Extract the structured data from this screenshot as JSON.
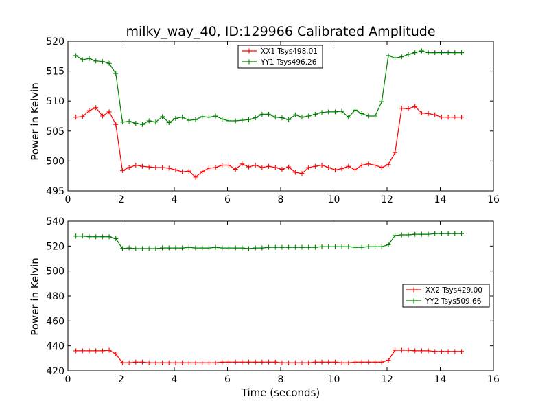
{
  "chart_data": [
    {
      "type": "line",
      "title": "milky_way_40, ID:129966 Calibrated Amplitude",
      "xlabel": "",
      "ylabel": "Power in Kelvin",
      "xlim": [
        0,
        16
      ],
      "ylim": [
        495,
        520
      ],
      "xticks": [
        "0",
        "2",
        "4",
        "6",
        "8",
        "10",
        "12",
        "14",
        "16"
      ],
      "yticks": [
        "495",
        "500",
        "505",
        "510",
        "515",
        "520"
      ],
      "grid": false,
      "legend_position": "top-center",
      "x": [
        0.3,
        0.55,
        0.8,
        1.05,
        1.3,
        1.55,
        1.8,
        2.05,
        2.3,
        2.55,
        2.8,
        3.05,
        3.3,
        3.55,
        3.8,
        4.05,
        4.3,
        4.55,
        4.8,
        5.05,
        5.3,
        5.55,
        5.8,
        6.05,
        6.3,
        6.55,
        6.8,
        7.05,
        7.3,
        7.55,
        7.8,
        8.05,
        8.3,
        8.55,
        8.8,
        9.05,
        9.3,
        9.55,
        9.8,
        10.05,
        10.3,
        10.55,
        10.8,
        11.05,
        11.3,
        11.55,
        11.8,
        12.05,
        12.3,
        12.55,
        12.8,
        13.05,
        13.3,
        13.55,
        13.8,
        14.05,
        14.3,
        14.55,
        14.8
      ],
      "series": [
        {
          "name": "XX1 Tsys498.01",
          "color": "#ff0000",
          "values": [
            507.3,
            507.4,
            508.4,
            508.9,
            507.5,
            508.2,
            506.1,
            498.4,
            498.9,
            499.3,
            499.1,
            499.0,
            498.9,
            498.9,
            498.8,
            498.5,
            498.2,
            498.3,
            497.3,
            498.2,
            498.8,
            498.9,
            499.3,
            499.3,
            498.6,
            499.5,
            499.0,
            499.3,
            498.9,
            499.1,
            498.9,
            498.6,
            499.0,
            498.1,
            497.9,
            498.9,
            499.1,
            499.3,
            498.9,
            498.5,
            498.7,
            499.1,
            498.5,
            499.3,
            499.5,
            499.3,
            498.9,
            499.4,
            501.4,
            508.8,
            508.7,
            509.1,
            508.0,
            507.9,
            507.7,
            507.3,
            507.3,
            507.3,
            507.3
          ]
        },
        {
          "name": "YY1 Tsys496.26",
          "color": "#008000",
          "values": [
            517.6,
            516.9,
            517.1,
            516.7,
            516.6,
            516.3,
            514.6,
            506.5,
            506.6,
            506.3,
            506.1,
            506.7,
            506.5,
            507.4,
            506.4,
            507.1,
            507.3,
            506.8,
            506.9,
            507.4,
            507.3,
            507.5,
            507.0,
            506.7,
            506.7,
            506.8,
            506.9,
            507.2,
            507.8,
            507.8,
            507.3,
            507.2,
            506.9,
            507.7,
            507.3,
            507.5,
            507.8,
            508.1,
            508.2,
            508.2,
            508.3,
            507.3,
            508.5,
            507.9,
            507.5,
            507.5,
            509.9,
            517.6,
            517.2,
            517.4,
            517.8,
            518.1,
            518.4,
            518.1,
            518.1,
            518.1,
            518.1,
            518.1,
            518.1
          ]
        }
      ]
    },
    {
      "type": "line",
      "title": "",
      "xlabel": "Time (seconds)",
      "ylabel": "Power in Kelvin",
      "xlim": [
        0,
        16
      ],
      "ylim": [
        420,
        540
      ],
      "xticks": [
        "0",
        "2",
        "4",
        "6",
        "8",
        "10",
        "12",
        "14",
        "16"
      ],
      "yticks": [
        "420",
        "440",
        "460",
        "480",
        "500",
        "520",
        "540"
      ],
      "grid": false,
      "legend_position": "center-right",
      "x": [
        0.3,
        0.55,
        0.8,
        1.05,
        1.3,
        1.55,
        1.8,
        2.05,
        2.3,
        2.55,
        2.8,
        3.05,
        3.3,
        3.55,
        3.8,
        4.05,
        4.3,
        4.55,
        4.8,
        5.05,
        5.3,
        5.55,
        5.8,
        6.05,
        6.3,
        6.55,
        6.8,
        7.05,
        7.3,
        7.55,
        7.8,
        8.05,
        8.3,
        8.55,
        8.8,
        9.05,
        9.3,
        9.55,
        9.8,
        10.05,
        10.3,
        10.55,
        10.8,
        11.05,
        11.3,
        11.55,
        11.8,
        12.05,
        12.3,
        12.55,
        12.8,
        13.05,
        13.3,
        13.55,
        13.8,
        14.05,
        14.3,
        14.55,
        14.8
      ],
      "series": [
        {
          "name": "XX2 Tsys429.00",
          "color": "#ff0000",
          "values": [
            436.0,
            436.0,
            436.0,
            436.0,
            436.0,
            436.5,
            433.5,
            426.5,
            426.5,
            427.0,
            427.0,
            426.5,
            426.5,
            426.5,
            426.5,
            426.5,
            426.5,
            426.5,
            426.5,
            426.5,
            426.5,
            426.5,
            427.0,
            427.0,
            427.0,
            427.0,
            427.0,
            427.0,
            427.0,
            427.0,
            427.0,
            426.5,
            426.5,
            426.5,
            426.5,
            426.5,
            427.0,
            427.0,
            427.0,
            427.0,
            426.5,
            426.5,
            427.0,
            427.0,
            427.0,
            427.0,
            427.0,
            428.5,
            436.5,
            436.5,
            436.5,
            436.0,
            436.0,
            436.0,
            435.5,
            435.5,
            435.5,
            435.5,
            435.5
          ]
        },
        {
          "name": "YY2 Tsys509.66",
          "color": "#008000",
          "values": [
            528.0,
            528.0,
            527.5,
            527.5,
            527.5,
            527.5,
            526.0,
            518.0,
            518.5,
            518.0,
            518.0,
            518.0,
            518.0,
            518.5,
            518.5,
            518.5,
            518.5,
            519.0,
            518.5,
            518.5,
            518.5,
            519.0,
            518.5,
            518.5,
            518.5,
            518.5,
            518.0,
            518.5,
            518.5,
            519.0,
            519.0,
            519.0,
            519.0,
            519.0,
            519.0,
            519.0,
            519.0,
            519.5,
            519.5,
            519.5,
            519.5,
            519.5,
            519.0,
            519.0,
            519.5,
            519.5,
            519.5,
            521.0,
            528.5,
            529.0,
            529.0,
            529.5,
            529.5,
            529.5,
            530.0,
            530.0,
            530.0,
            530.0,
            530.0
          ]
        }
      ]
    }
  ]
}
